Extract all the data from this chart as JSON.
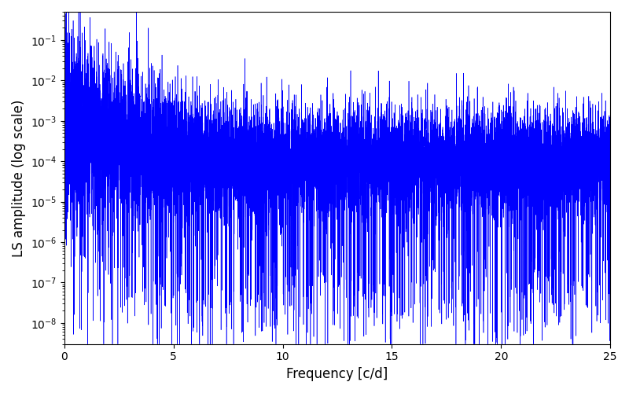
{
  "title": "",
  "xlabel": "Frequency [c/d]",
  "ylabel": "LS amplitude (log scale)",
  "xmin": 0,
  "xmax": 25,
  "ymin": 3e-09,
  "ymax": 0.5,
  "line_color": "#0000ff",
  "linewidth": 0.4,
  "background_color": "#ffffff",
  "figsize": [
    8.0,
    5.0
  ],
  "dpi": 100,
  "n_points": 12000,
  "seed": 7,
  "noise_floor_low": 0.0001,
  "noise_floor_high": 5e-05
}
